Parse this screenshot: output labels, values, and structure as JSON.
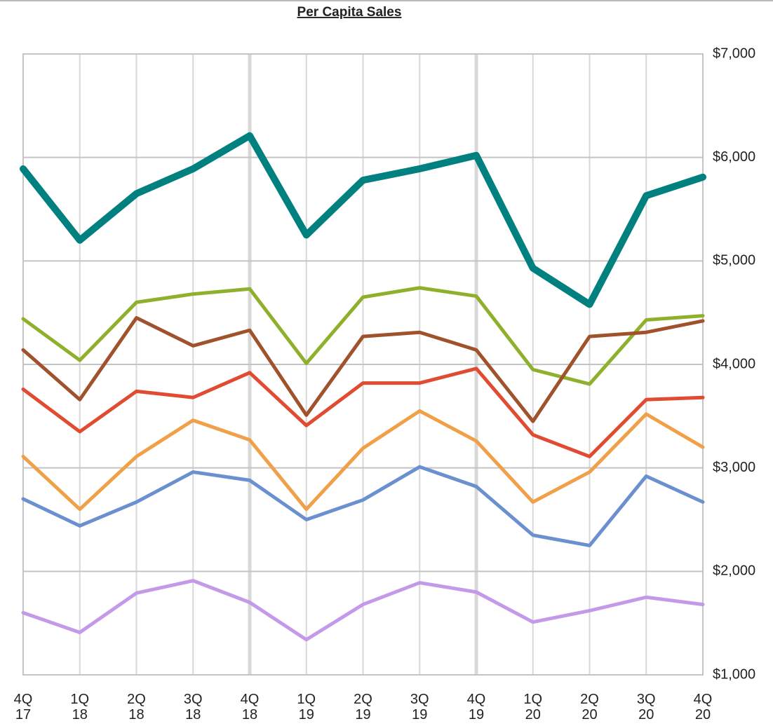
{
  "chart_data": {
    "type": "line",
    "title": "Per Capita Sales",
    "categories": [
      "4Q\n17",
      "1Q\n18",
      "2Q\n18",
      "3Q\n18",
      "4Q\n18",
      "1Q\n19",
      "2Q\n19",
      "3Q\n19",
      "4Q\n19",
      "1Q\n20",
      "2Q\n20",
      "3Q\n20",
      "4Q\n20"
    ],
    "series": [
      {
        "color": "#00807f",
        "values": [
          5890,
          5200,
          5650,
          5890,
          6210,
          5250,
          5780,
          5890,
          6020,
          4930,
          4580,
          5630,
          5810
        ]
      },
      {
        "color": "#8fb02c",
        "values": [
          4440,
          4040,
          4600,
          4680,
          4730,
          4010,
          4650,
          4740,
          4660,
          3950,
          3810,
          4430,
          4470
        ]
      },
      {
        "color": "#a0522d",
        "values": [
          4140,
          3660,
          4450,
          4180,
          4330,
          3510,
          4270,
          4310,
          4140,
          3450,
          4270,
          4310,
          4420
        ]
      },
      {
        "color": "#e04b32",
        "values": [
          3760,
          3350,
          3740,
          3680,
          3920,
          3410,
          3820,
          3820,
          3960,
          3320,
          3110,
          3660,
          3680
        ]
      },
      {
        "color": "#f0a048",
        "values": [
          3110,
          2600,
          3110,
          3460,
          3270,
          2600,
          3190,
          3550,
          3260,
          2670,
          2960,
          3520,
          3200
        ]
      },
      {
        "color": "#6a90d0",
        "values": [
          2700,
          2440,
          2670,
          2960,
          2880,
          2500,
          2690,
          3010,
          2820,
          2350,
          2250,
          2920,
          2670
        ]
      },
      {
        "color": "#c49ae8",
        "values": [
          1600,
          1410,
          1790,
          1910,
          1700,
          1340,
          1680,
          1890,
          1800,
          1510,
          1620,
          1750,
          1680
        ]
      }
    ],
    "ylim": [
      1000,
      7000
    ],
    "yticks": [
      {
        "value": 1000,
        "label": "$1,000"
      },
      {
        "value": 2000,
        "label": "$2,000"
      },
      {
        "value": 3000,
        "label": "$3,000"
      },
      {
        "value": 4000,
        "label": "$4,000"
      },
      {
        "value": 5000,
        "label": "$5,000"
      },
      {
        "value": 6000,
        "label": "$6,000"
      },
      {
        "value": 7000,
        "label": "$7,000"
      }
    ],
    "grid": true
  }
}
